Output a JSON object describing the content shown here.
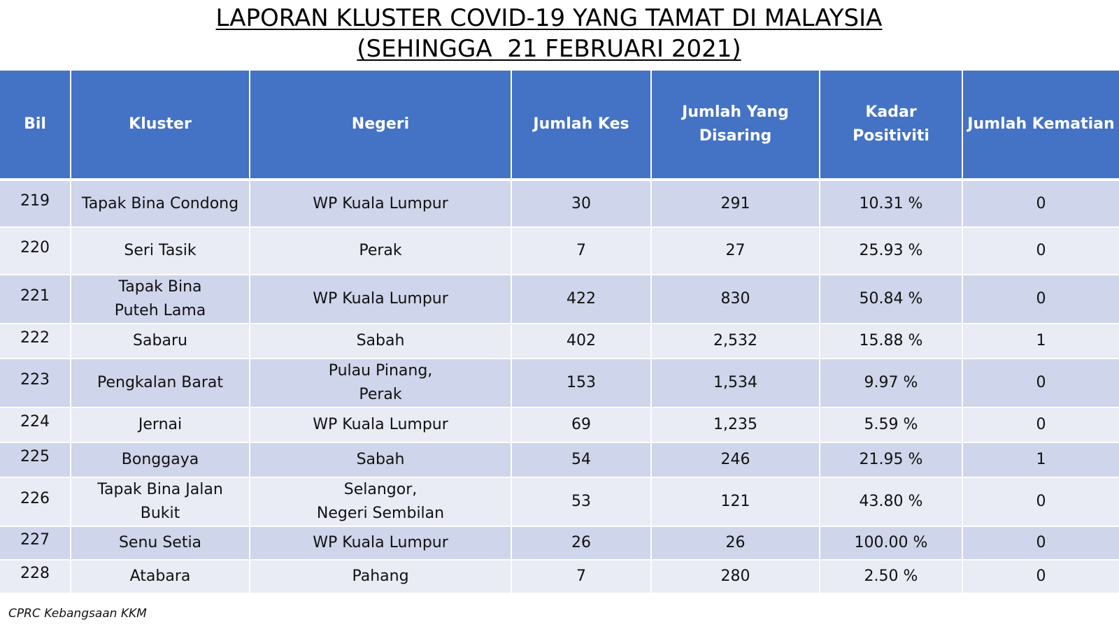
{
  "title": {
    "line1": "LAPORAN KLUSTER COVID-19 YANG TAMAT DI MALAYSIA",
    "line2": "(SEHINGGA  21 FEBRUARI 2021)"
  },
  "table": {
    "headers": {
      "bil": "Bil",
      "kluster": "Kluster",
      "negeri": "Negeri",
      "jumlah_kes": "Jumlah Kes",
      "jumlah_disaring_1": "Jumlah Yang",
      "jumlah_disaring_2": "Disaring",
      "kadar_positiviti": "Kadar Positiviti",
      "jumlah_kematian": "Jumlah Kematian"
    },
    "rows": [
      {
        "bil": "219",
        "kluster": [
          "Tapak Bina Condong"
        ],
        "negeri": [
          "WP Kuala Lumpur"
        ],
        "kes": "30",
        "disaring": "291",
        "positiviti": "10.31 %",
        "kematian": "0"
      },
      {
        "bil": "220",
        "kluster": [
          "Seri Tasik"
        ],
        "negeri": [
          "Perak"
        ],
        "kes": "7",
        "disaring": "27",
        "positiviti": "25.93 %",
        "kematian": "0"
      },
      {
        "bil": "221",
        "kluster": [
          "Tapak Bina",
          "Puteh Lama"
        ],
        "negeri": [
          "WP Kuala Lumpur"
        ],
        "kes": "422",
        "disaring": "830",
        "positiviti": "50.84 %",
        "kematian": "0"
      },
      {
        "bil": "222",
        "kluster": [
          "Sabaru"
        ],
        "negeri": [
          "Sabah"
        ],
        "kes": "402",
        "disaring": "2,532",
        "positiviti": "15.88 %",
        "kematian": "1"
      },
      {
        "bil": "223",
        "kluster": [
          "Pengkalan Barat"
        ],
        "negeri": [
          "Pulau Pinang,",
          "Perak"
        ],
        "kes": "153",
        "disaring": "1,534",
        "positiviti": "9.97 %",
        "kematian": "0"
      },
      {
        "bil": "224",
        "kluster": [
          "Jernai"
        ],
        "negeri": [
          "WP Kuala Lumpur"
        ],
        "kes": "69",
        "disaring": "1,235",
        "positiviti": "5.59 %",
        "kematian": "0"
      },
      {
        "bil": "225",
        "kluster": [
          "Bonggaya"
        ],
        "negeri": [
          "Sabah"
        ],
        "kes": "54",
        "disaring": "246",
        "positiviti": "21.95 %",
        "kematian": "1"
      },
      {
        "bil": "226",
        "kluster": [
          "Tapak Bina Jalan",
          "Bukit"
        ],
        "negeri": [
          "Selangor,",
          "Negeri Sembilan"
        ],
        "kes": "53",
        "disaring": "121",
        "positiviti": "43.80 %",
        "kematian": "0"
      },
      {
        "bil": "227",
        "kluster": [
          "Senu Setia"
        ],
        "negeri": [
          "WP Kuala Lumpur"
        ],
        "kes": "26",
        "disaring": "26",
        "positiviti": "100.00 %",
        "kematian": "0"
      },
      {
        "bil": "228",
        "kluster": [
          "Atabara"
        ],
        "negeri": [
          "Pahang"
        ],
        "kes": "7",
        "disaring": "280",
        "positiviti": "2.50 %",
        "kematian": "0"
      }
    ]
  },
  "source": "CPRC Kebangsaan KKM",
  "colors": {
    "header_bg": "#4472c4",
    "row_dark": "#cfd5ea",
    "row_light": "#e9ebf5"
  }
}
